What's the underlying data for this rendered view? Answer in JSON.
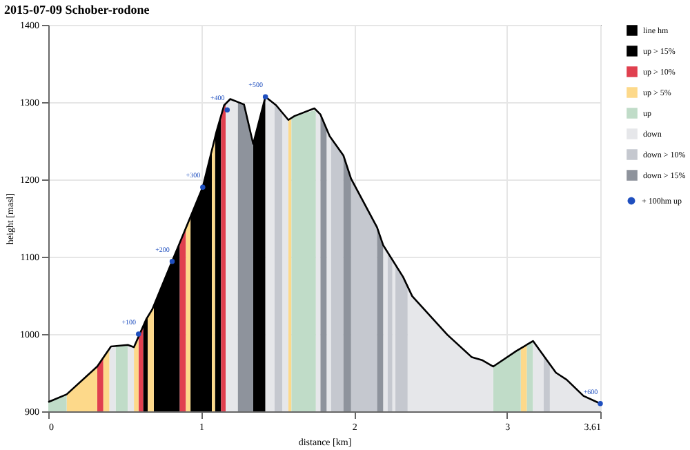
{
  "chart_data": {
    "type": "area",
    "title": "2015-07-09 Schober-rodone",
    "xlabel": "distance [km]",
    "ylabel": "height [masl]",
    "xlim": [
      0,
      3.61
    ],
    "xticks": [
      0,
      1,
      2,
      3,
      3.61
    ],
    "ylim": [
      900,
      1400
    ],
    "yticks": [
      900,
      1000,
      1100,
      1200,
      1300,
      1400
    ],
    "grid": true,
    "legend": "top right",
    "annotations": [
      {
        "text": "+100",
        "x": 0.59,
        "y": 1000
      },
      {
        "text": "+200",
        "x": 0.81,
        "y": 1094
      },
      {
        "text": "+300",
        "x": 1.01,
        "y": 1190
      },
      {
        "text": "+400",
        "x": 1.17,
        "y": 1290
      },
      {
        "text": "+500",
        "x": 1.42,
        "y": 1307
      },
      {
        "text": "+600",
        "x": 3.61,
        "y": 910
      }
    ],
    "series": [
      {
        "name": "+ 100hm up",
        "type": "scatter",
        "marker": "circle",
        "color": "#1f4fbf",
        "x": [
          0.59,
          0.81,
          1.01,
          1.17,
          1.42,
          3.61
        ],
        "values": [
          1000,
          1094,
          1190,
          1290,
          1307,
          910
        ]
      },
      {
        "name": "line hm",
        "type": "line",
        "line_style": "solid",
        "color": "#000000",
        "x": [
          0,
          0.12,
          0.32,
          0.41,
          0.52,
          0.56,
          0.64,
          0.68,
          1.01,
          1.1,
          1.15,
          1.19,
          1.28,
          1.34,
          1.42,
          1.49,
          1.57,
          1.61,
          1.74,
          1.78,
          1.84,
          1.93,
          1.98,
          2.15,
          2.19,
          2.32,
          2.38,
          2.61,
          2.77,
          2.84,
          2.91,
          3.06,
          3.17,
          3.32,
          3.39,
          3.5,
          3.61
        ],
        "values": [
          912,
          922,
          958,
          984,
          986,
          983,
          1019,
          1032,
          1190,
          1262,
          1296,
          1304,
          1297,
          1246,
          1307,
          1296,
          1277,
          1282,
          1292,
          1284,
          1256,
          1231,
          1201,
          1138,
          1115,
          1074,
          1049,
          999,
          970,
          966,
          958,
          978,
          991,
          950,
          941,
          920,
          910
        ]
      },
      {
        "name": "up > 15%",
        "color": "#000000",
        "x": [
          0.62,
          0.65,
          null,
          0.69,
          0.86,
          null,
          0.93,
          1.01,
          1.07,
          null,
          1.09,
          1.13,
          null,
          1.34,
          1.42
        ],
        "values": [
          1010,
          1022,
          null,
          1037,
          1118,
          null,
          1152,
          1190,
          1238,
          null,
          1254,
          1282,
          null,
          1246,
          1307
        ]
      },
      {
        "name": "up > 10%",
        "color": "#e0404f",
        "x": [
          0.32,
          0.36,
          null,
          0.59,
          0.62,
          null,
          0.86,
          0.9,
          null,
          1.13,
          1.16
        ],
        "values": [
          958,
          969,
          null,
          1000,
          1010,
          null,
          1118,
          1137,
          null,
          1282,
          1298
        ]
      },
      {
        "name": "up > 5%",
        "color": "#fdd98a",
        "x": [
          0.12,
          0.32,
          null,
          0.36,
          0.4,
          null,
          0.56,
          0.59,
          null,
          0.65,
          0.69,
          null,
          0.9,
          0.93,
          null,
          1.07,
          1.09,
          null,
          1.57,
          1.59,
          null,
          3.09,
          3.13
        ],
        "values": [
          922,
          958,
          null,
          969,
          981,
          null,
          983,
          1000,
          null,
          1022,
          1037,
          null,
          1137,
          1152,
          null,
          1238,
          1254,
          null,
          1277,
          1280,
          null,
          981,
          986
        ]
      },
      {
        "name": "up",
        "color": "#c0dcc8",
        "x": [
          0,
          0.12,
          null,
          0.44,
          0.52,
          null,
          1.59,
          1.61,
          1.75,
          null,
          2.91,
          3.06,
          3.09,
          null,
          3.13,
          3.17
        ],
        "values": [
          912,
          922,
          null,
          984,
          986,
          null,
          1280,
          1282,
          1290,
          null,
          958,
          978,
          981,
          null,
          986,
          991
        ]
      },
      {
        "name": "down",
        "color": "#e6e7ea",
        "x": [
          0.4,
          0.44,
          null,
          0.52,
          0.56,
          null,
          1.16,
          1.19,
          1.24,
          null,
          1.42,
          1.48,
          null,
          1.53,
          1.57,
          null,
          1.75,
          1.78,
          null,
          1.82,
          1.84,
          1.85,
          null,
          2.19,
          2.22,
          null,
          2.25,
          2.27,
          null,
          2.35,
          2.38,
          2.61,
          2.77,
          2.84,
          2.91,
          null,
          3.17,
          3.24,
          null,
          3.28,
          3.32,
          3.39,
          3.5,
          3.61
        ],
        "values": [
          981,
          984,
          null,
          986,
          983,
          null,
          1298,
          1304,
          1300,
          null,
          1307,
          1298,
          null,
          1287,
          1277,
          null,
          1290,
          1284,
          null,
          1265,
          1256,
          1253,
          null,
          1115,
          1106,
          null,
          1096,
          1090,
          null,
          1062,
          1049,
          999,
          970,
          966,
          958,
          null,
          991,
          972,
          null,
          961,
          950,
          941,
          920,
          910
        ]
      },
      {
        "name": "down > 10%",
        "color": "#c5c8cf",
        "x": [
          1.48,
          1.53,
          null,
          1.85,
          1.93,
          null,
          1.98,
          2.15,
          null,
          2.22,
          2.25,
          null,
          2.27,
          2.32,
          2.35,
          null,
          3.24,
          3.28
        ],
        "values": [
          1298,
          1287,
          null,
          1253,
          1231,
          null,
          1201,
          1138,
          null,
          1106,
          1096,
          null,
          1090,
          1074,
          1062,
          null,
          972,
          961
        ]
      },
      {
        "name": "down > 15%",
        "color": "#8e939c",
        "x": [
          1.24,
          1.28,
          1.34,
          null,
          1.78,
          1.82,
          null,
          1.93,
          1.98,
          null,
          2.15,
          2.19
        ],
        "values": [
          1300,
          1297,
          1246,
          null,
          1284,
          1265,
          null,
          1231,
          1201,
          null,
          1138,
          1115
        ]
      }
    ]
  }
}
